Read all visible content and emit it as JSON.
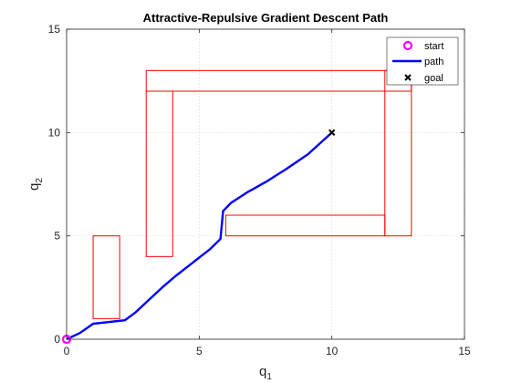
{
  "chart_data": {
    "type": "line",
    "title": "Attractive-Repulsive Gradient Descent Path",
    "xlabel": {
      "main": "q",
      "sub": "1"
    },
    "ylabel": {
      "main": "q",
      "sub": "2"
    },
    "xlim": [
      0,
      15
    ],
    "ylim": [
      0,
      15
    ],
    "xticks": [
      0,
      5,
      10,
      15
    ],
    "yticks": [
      0,
      5,
      10,
      15
    ],
    "xtick_labels": [
      "0",
      "5",
      "10",
      "15"
    ],
    "ytick_labels": [
      "0",
      "5",
      "10",
      "15"
    ],
    "grid": true,
    "legend_position": "top-right",
    "legend": [
      {
        "label": "start",
        "marker": "circle",
        "color": "#ff00ff"
      },
      {
        "label": "path",
        "marker": "line",
        "color": "#0000ff"
      },
      {
        "label": "goal",
        "marker": "x",
        "color": "#000000"
      }
    ],
    "obstacles": [
      {
        "name": "obstacle-bottom-left",
        "x": [
          1,
          2
        ],
        "y": [
          1,
          5
        ]
      },
      {
        "name": "obstacle-left-column",
        "x": [
          3,
          4
        ],
        "y": [
          4,
          12
        ]
      },
      {
        "name": "obstacle-top-bar",
        "x": [
          3,
          13
        ],
        "y": [
          12,
          13
        ]
      },
      {
        "name": "obstacle-right-column",
        "x": [
          12,
          13
        ],
        "y": [
          5,
          13
        ]
      },
      {
        "name": "obstacle-middle-bar",
        "x": [
          6,
          12
        ],
        "y": [
          5,
          6
        ]
      }
    ],
    "obstacle_color": "#ff0000",
    "start": {
      "x": 0,
      "y": 0
    },
    "goal": {
      "x": 10,
      "y": 10
    },
    "series": [
      {
        "name": "path",
        "color": "#0000ff",
        "points": [
          [
            0,
            0
          ],
          [
            0.5,
            0.3
          ],
          [
            1.0,
            0.75
          ],
          [
            1.5,
            0.82
          ],
          [
            2.2,
            0.92
          ],
          [
            2.6,
            1.3
          ],
          [
            3.1,
            1.9
          ],
          [
            3.6,
            2.5
          ],
          [
            4.1,
            3.05
          ],
          [
            4.6,
            3.55
          ],
          [
            5.0,
            3.95
          ],
          [
            5.4,
            4.35
          ],
          [
            5.8,
            4.85
          ],
          [
            5.9,
            6.2
          ],
          [
            6.2,
            6.6
          ],
          [
            6.8,
            7.1
          ],
          [
            7.5,
            7.6
          ],
          [
            8.3,
            8.25
          ],
          [
            9.1,
            8.95
          ],
          [
            10.0,
            10.0
          ]
        ]
      }
    ]
  }
}
